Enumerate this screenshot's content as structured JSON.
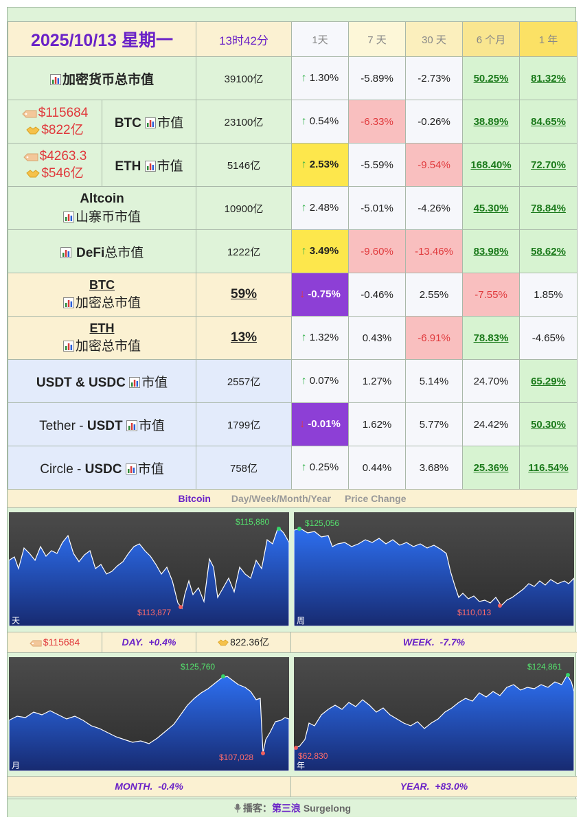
{
  "header": {
    "date": "2025/10/13 星期一",
    "time": "13时42分",
    "periods": [
      "1天",
      "7 天",
      "30 天",
      "6 个月",
      "1 年"
    ]
  },
  "rows": {
    "total": {
      "label": "加密货币总市值",
      "value": "39100亿",
      "changes": [
        "1.30%",
        "-5.89%",
        "-2.73%",
        "50.25%",
        "81.32%"
      ]
    },
    "btc": {
      "price": "$115684",
      "volume": "$822亿",
      "label_a": "BTC",
      "label_b": "市值",
      "value": "23100亿",
      "changes": [
        "0.54%",
        "-6.33%",
        "-0.26%",
        "38.89%",
        "84.65%"
      ]
    },
    "eth": {
      "price": "$4263.3",
      "volume": "$546亿",
      "label_a": "ETH",
      "label_b": "市值",
      "value": "5146亿",
      "changes": [
        "2.53%",
        "-5.59%",
        "-9.54%",
        "168.40%",
        "72.70%"
      ]
    },
    "altcoin": {
      "label_a": "Altcoin",
      "label_b": "山寨币市值",
      "value": "10900亿",
      "changes": [
        "2.48%",
        "-5.01%",
        "-4.26%",
        "45.30%",
        "78.84%"
      ]
    },
    "defi": {
      "label_a": "DeFi",
      "label_b": "总市值",
      "value": "1222亿",
      "changes": [
        "3.49%",
        "-9.60%",
        "-13.46%",
        "83.98%",
        "58.62%"
      ]
    },
    "btc_dom": {
      "label_a": "BTC",
      "label_b": "加密总市值",
      "value": "59%",
      "changes": [
        "-0.75%",
        "-0.46%",
        "2.55%",
        "-7.55%",
        "1.85%"
      ]
    },
    "eth_dom": {
      "label_a": "ETH",
      "label_b": "加密总市值",
      "value": "13%",
      "changes": [
        "1.32%",
        "0.43%",
        "-6.91%",
        "78.83%",
        "-4.65%"
      ]
    },
    "stables": {
      "label_a": "USDT",
      "label_amp": "&",
      "label_c": "USDC",
      "label_b": "市值",
      "value": "2557亿",
      "changes": [
        "0.07%",
        "1.27%",
        "5.14%",
        "24.70%",
        "65.29%"
      ]
    },
    "usdt": {
      "label_pre": "Tether - ",
      "label_a": "USDT",
      "label_b": "市值",
      "value": "1799亿",
      "changes": [
        "-0.01%",
        "1.62%",
        "5.77%",
        "24.42%",
        "50.30%"
      ]
    },
    "usdc": {
      "label_pre": "Circle - ",
      "label_a": "USDC",
      "label_b": "市值",
      "value": "758亿",
      "changes": [
        "0.25%",
        "0.44%",
        "3.68%",
        "25.36%",
        "116.54%"
      ]
    }
  },
  "strip": {
    "coin": "Bitcoin",
    "periods_text": "Day/Week/Month/Year",
    "caption": "Price Change"
  },
  "charts": {
    "day": {
      "corner": "天",
      "high": "$115,880",
      "low": "$113,877",
      "line_color": "#ffffff"
    },
    "week": {
      "corner": "周",
      "high": "$125,056",
      "low": "$110,013",
      "line_color": "#ffffff"
    },
    "month": {
      "corner": "月",
      "high": "$125,760",
      "low": "$107,028",
      "line_color": "#ffffff"
    },
    "year": {
      "corner": "年",
      "high": "$124,861",
      "low": "$62,830",
      "line_color": "#ffffff"
    }
  },
  "bars": {
    "price": "$115684",
    "day_label": "DAY.",
    "day_change": "+0.4%",
    "volume": "822.36亿",
    "week_label": "WEEK.",
    "week_change": "-7.7%",
    "month_label": "MONTH.",
    "month_change": "-0.4%",
    "year_label": "YEAR.",
    "year_change": "+83.0%"
  },
  "footer": {
    "prefix": "播客：",
    "host": "第三浪",
    "name": "Surgelong"
  },
  "colors": {
    "accent_purple": "#6a22c7",
    "up_green": "#33b24a",
    "down_red": "#e0393c",
    "highlight_yellow": "#fde74c",
    "highlight_purple": "#8d3fd6"
  },
  "icons": {
    "bar_chart": "bar-chart-icon",
    "price_tag": "price-tag-icon",
    "handshake": "handshake-icon",
    "microphone": "microphone-icon",
    "arrow_up": "arrow-up-icon",
    "arrow_down": "arrow-down-icon"
  }
}
